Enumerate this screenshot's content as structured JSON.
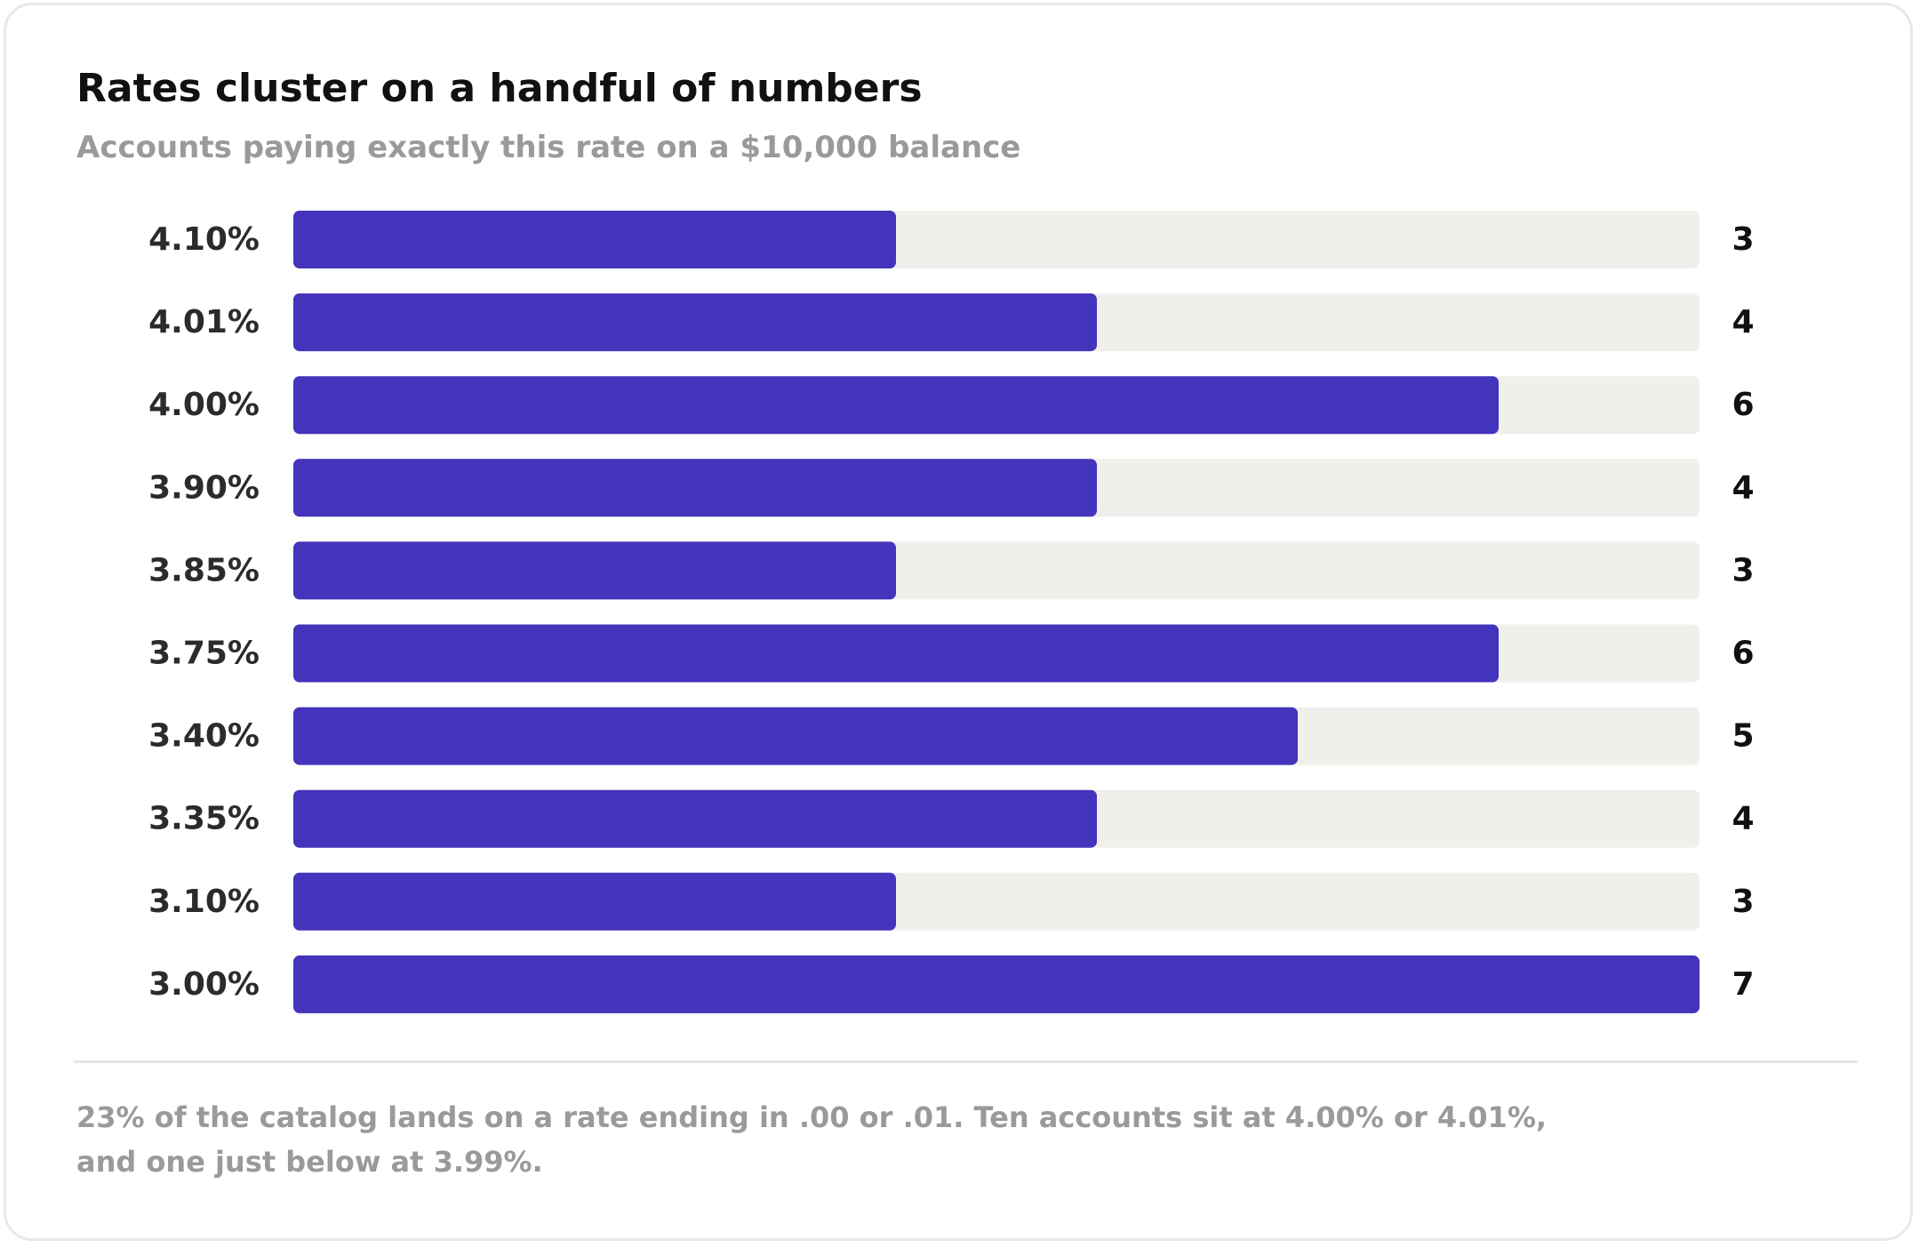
{
  "header": {
    "title": "Rates cluster on a handful of numbers",
    "subtitle": "Accounts paying exactly this rate on a $10,000 balance"
  },
  "colors": {
    "bar_fill": "#4433bb",
    "track_fill": "#f0efeb",
    "card_border": "#e8e8e8",
    "title_text": "#111111",
    "muted_text": "#9a9a9d"
  },
  "chart_data": {
    "type": "bar",
    "orientation": "horizontal",
    "categories": [
      "4.10%",
      "4.01%",
      "4.00%",
      "3.90%",
      "3.85%",
      "3.75%",
      "3.40%",
      "3.35%",
      "3.10%",
      "3.00%"
    ],
    "values": [
      3,
      4,
      6,
      4,
      3,
      6,
      5,
      4,
      3,
      7
    ],
    "xlim": [
      0,
      7
    ],
    "grid": false,
    "data_labels": true
  },
  "footnote": "23% of the catalog lands on a rate ending in .00 or .01. Ten accounts sit at 4.00% or 4.01%, and one just below at 3.99%."
}
